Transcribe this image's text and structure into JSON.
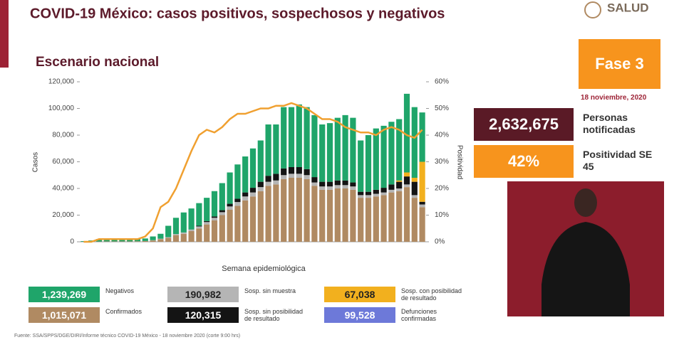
{
  "header": {
    "logo": "SALUD"
  },
  "chart_data": {
    "type": "bar",
    "title": "COVID-19 México: casos positivos, sospechosos y negativos",
    "subtitle": "Escenario nacional",
    "ylabel": "Casos",
    "y2label": "Positividad",
    "xlabel": "Semana epidemiológica",
    "categories": [
      null,
      null,
      null,
      null,
      null,
      null,
      null,
      null,
      null,
      null,
      null,
      null,
      null,
      null,
      null,
      null,
      null,
      null,
      null,
      null,
      null,
      null,
      null,
      null,
      null,
      null,
      null,
      null,
      null,
      null,
      null,
      null,
      null,
      null,
      null,
      null,
      null,
      null,
      null,
      null,
      null,
      null,
      null,
      null,
      null
    ],
    "ylim": [
      0,
      120000
    ],
    "yticks": [
      0,
      {
        "value": 20000,
        "label": "20,000"
      },
      {
        "value": 40000,
        "label": "40,000"
      },
      {
        "value": 60000,
        "label": "60,000"
      },
      {
        "value": 80000,
        "label": "80,000"
      },
      {
        "value": 100000,
        "label": "100,000"
      },
      {
        "value": 120000,
        "label": "120,000"
      }
    ],
    "y2lim": [
      0,
      60
    ],
    "y2ticks": [
      {
        "value": 0,
        "label": "0%"
      },
      {
        "value": 10,
        "label": "10%"
      },
      {
        "value": 20,
        "label": "20%"
      },
      {
        "value": 30,
        "label": "30%"
      },
      {
        "value": 40,
        "label": "40%"
      },
      {
        "value": 50,
        "label": "50%"
      },
      {
        "value": 60,
        "label": "60%"
      }
    ],
    "stacked": true,
    "series": [
      {
        "name": "Confirmados",
        "total": "1,015,071",
        "color": "#b08a62",
        "values": [
          50,
          100,
          200,
          300,
          300,
          300,
          300,
          400,
          600,
          1000,
          2000,
          3000,
          5000,
          6000,
          8000,
          10000,
          13000,
          16000,
          20000,
          24000,
          27000,
          31000,
          34000,
          38000,
          42000,
          43000,
          47000,
          48000,
          48000,
          47000,
          42000,
          39000,
          39000,
          40000,
          40000,
          39000,
          33000,
          33000,
          34000,
          35000,
          37000,
          38000,
          41000,
          33000,
          26000
        ]
      },
      {
        "name": "Sosp. sin muestra",
        "total": "190,982",
        "color": "#b5b5b5",
        "values": [
          0,
          0,
          0,
          0,
          0,
          0,
          0,
          0,
          0,
          200,
          300,
          500,
          800,
          1000,
          1200,
          1500,
          1800,
          2000,
          2200,
          2500,
          2800,
          3000,
          3000,
          3000,
          3000,
          3000,
          3000,
          3000,
          3000,
          3000,
          2500,
          2500,
          2500,
          2500,
          2500,
          2500,
          2000,
          2000,
          2000,
          2000,
          2000,
          2000,
          2000,
          2000,
          2000
        ]
      },
      {
        "name": "Sosp. sin posibilidad de resultado",
        "total": "120,315",
        "color": "#141414",
        "values": [
          0,
          0,
          0,
          0,
          0,
          0,
          0,
          0,
          0,
          0,
          0,
          0,
          0,
          0,
          0,
          500,
          700,
          1000,
          1500,
          2000,
          2500,
          3000,
          3500,
          4000,
          4500,
          5000,
          5000,
          5000,
          5000,
          4500,
          4000,
          3500,
          3500,
          3500,
          3500,
          3000,
          2500,
          2500,
          3000,
          3500,
          4000,
          5000,
          6000,
          10000,
          2000
        ]
      },
      {
        "name": "Sosp. con posibilidad de resultado",
        "total": "67,038",
        "color": "#f2b01e",
        "values": [
          0,
          0,
          0,
          0,
          0,
          0,
          0,
          0,
          0,
          0,
          0,
          0,
          0,
          0,
          0,
          0,
          0,
          0,
          0,
          0,
          0,
          0,
          0,
          0,
          0,
          0,
          0,
          0,
          0,
          0,
          0,
          0,
          0,
          0,
          0,
          0,
          0,
          0,
          0,
          0,
          0,
          1000,
          3000,
          3000,
          30000
        ]
      },
      {
        "name": "Negativos",
        "total": "1,239,269",
        "color": "#1fa56a",
        "values": [
          450,
          900,
          1800,
          2200,
          1700,
          1700,
          1700,
          1600,
          1900,
          2800,
          3700,
          8500,
          12200,
          15000,
          15800,
          17000,
          17500,
          19000,
          20300,
          23500,
          25700,
          27000,
          29500,
          31000,
          38500,
          37000,
          46000,
          45000,
          47000,
          46500,
          46500,
          43000,
          44000,
          47000,
          49000,
          48500,
          38500,
          42500,
          46000,
          46500,
          47000,
          46000,
          59000,
          53000,
          37000
        ]
      }
    ],
    "line": {
      "type": "line",
      "axis": "y2",
      "color": "#f0a030",
      "values": [
        0,
        0,
        1,
        1,
        1,
        1,
        1,
        1,
        2,
        5,
        13,
        15,
        20,
        27,
        34,
        40,
        42,
        41,
        43,
        46,
        48,
        48,
        49,
        50,
        50,
        51,
        51,
        52,
        51,
        50,
        48,
        46,
        46,
        45,
        43,
        42,
        41,
        41,
        40,
        42,
        43,
        42,
        40,
        39,
        42
      ]
    },
    "extra_total": {
      "name": "Defunciones confirmadas",
      "total": "99,528",
      "color": "#6d79d9"
    },
    "source": "Fuente: SSA/SPPS/DGE/DIRI/Informe técnico COVID-19 México - 18 noviembre 2020 (corte 9:00 hrs)"
  },
  "phase": "Fase 3",
  "date": "18 noviembre, 2020",
  "stats": [
    {
      "value": "2,632,675",
      "label": "Personas notificadas",
      "color": "#5a1a26"
    },
    {
      "value": "42%",
      "label": "Positividad SE 45",
      "color": "#f7941d"
    }
  ]
}
